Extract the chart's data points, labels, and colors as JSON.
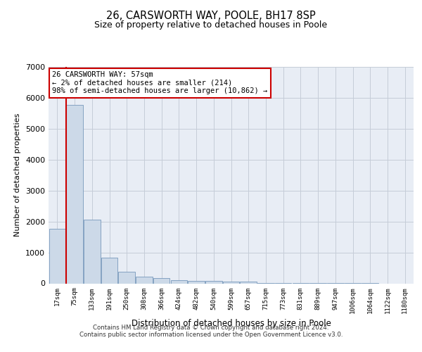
{
  "title1": "26, CARSWORTH WAY, POOLE, BH17 8SP",
  "title2": "Size of property relative to detached houses in Poole",
  "xlabel": "Distribution of detached houses by size in Poole",
  "ylabel": "Number of detached properties",
  "annotation_line1": "26 CARSWORTH WAY: 57sqm",
  "annotation_line2": "← 2% of detached houses are smaller (214)",
  "annotation_line3": "98% of semi-detached houses are larger (10,862) →",
  "bar_color": "#ccd9e8",
  "bar_edge_color": "#7799bb",
  "property_line_color": "#cc0000",
  "annotation_box_color": "#ffffff",
  "annotation_box_edge": "#cc0000",
  "background_color": "#ffffff",
  "plot_bg_color": "#e8edf5",
  "grid_color": "#c5cdd8",
  "categories": [
    "17sqm",
    "75sqm",
    "133sqm",
    "191sqm",
    "250sqm",
    "308sqm",
    "366sqm",
    "424sqm",
    "482sqm",
    "540sqm",
    "599sqm",
    "657sqm",
    "715sqm",
    "773sqm",
    "831sqm",
    "889sqm",
    "947sqm",
    "1006sqm",
    "1064sqm",
    "1122sqm",
    "1180sqm"
  ],
  "values": [
    1760,
    5760,
    2060,
    820,
    370,
    215,
    160,
    110,
    90,
    75,
    65,
    55,
    5,
    5,
    3,
    2,
    1,
    1,
    1,
    0,
    0
  ],
  "ylim": [
    0,
    7000
  ],
  "yticks": [
    0,
    1000,
    2000,
    3000,
    4000,
    5000,
    6000,
    7000
  ],
  "footer_line1": "Contains HM Land Registry data © Crown copyright and database right 2024.",
  "footer_line2": "Contains public sector information licensed under the Open Government Licence v3.0."
}
